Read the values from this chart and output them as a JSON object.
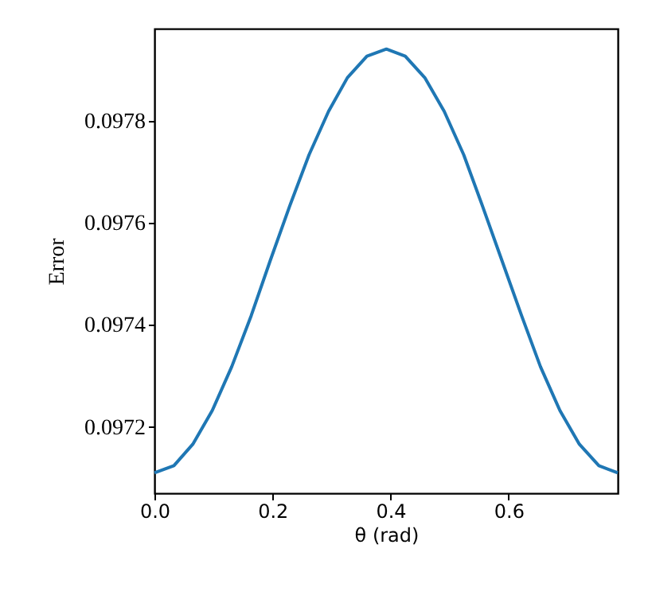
{
  "chart_data": {
    "type": "line",
    "xlabel": "θ (rad)",
    "ylabel": "Error",
    "x": [
      0,
      0.033,
      0.065,
      0.098,
      0.131,
      0.164,
      0.196,
      0.229,
      0.262,
      0.295,
      0.327,
      0.36,
      0.393,
      0.425,
      0.458,
      0.491,
      0.524,
      0.556,
      0.589,
      0.622,
      0.654,
      0.687,
      0.72,
      0.753,
      0.785
    ],
    "series": [
      {
        "color": "#1f77b4",
        "values": [
          0.09711,
          0.097124,
          0.097166,
          0.097232,
          0.097318,
          0.097418,
          0.097525,
          0.097632,
          0.097733,
          0.097818,
          0.097884,
          0.097926,
          0.09794,
          0.097926,
          0.097884,
          0.097818,
          0.097733,
          0.097632,
          0.097525,
          0.097418,
          0.097318,
          0.097232,
          0.097166,
          0.097124,
          0.09711
        ]
      }
    ],
    "xlim": [
      0,
      0.785
    ],
    "xticks": [
      {
        "value": 0,
        "label": "0.0"
      },
      0.2,
      0.4,
      0.6
    ],
    "ylim": [
      0.09707,
      0.09798
    ],
    "yticks": [
      0.0972,
      0.0974,
      0.0976,
      0.0978
    ],
    "grid": false,
    "marker": "none",
    "line_style": "solid"
  }
}
